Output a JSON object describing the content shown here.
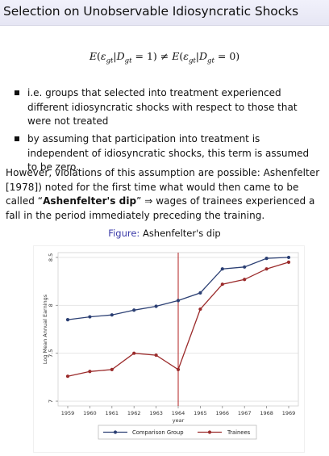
{
  "slide": {
    "title": "Selection on Unobservable Idiosyncratic Shocks",
    "bullets": [
      "i.e. groups that selected into treatment experienced different idiosyncratic shocks with respect to those that were not treated",
      "by assuming that participation into treatment is independent of idiosyncratic shocks, this term is assumed to be zero."
    ],
    "paragraph": {
      "pre": "However, violations of this assumption are possible: Ashenfelter [1978]) noted for the first time what would then came to be called “",
      "bold": "Ashenfelter's dip",
      "post": "” ⇒ wages of trainees experienced a fall in the period immediately preceding the training."
    },
    "caption_label": "Figure:",
    "caption_text": "Ashenfelter's dip"
  },
  "equation": {
    "lhs_E": "E",
    "eps": "ε",
    "gt": "gt",
    "bar": "|",
    "D": "D",
    "lhs_val": " = 1)",
    "open": "(",
    "neq": " ≠ ",
    "rhs_val": " = 0)"
  },
  "chart_data": {
    "type": "line",
    "title": "",
    "xlabel": "year",
    "ylabel": "Log Mean Annual Earnings",
    "x": [
      1959,
      1960,
      1961,
      1962,
      1963,
      1964,
      1965,
      1966,
      1967,
      1968,
      1969
    ],
    "x_ticks": [
      "1959",
      "1960",
      "1961",
      "1962",
      "1963",
      "1964",
      "1965",
      "1966",
      "1967",
      "1968",
      "1969"
    ],
    "y_ticks": [
      "7",
      "7.5",
      "8",
      "8.5"
    ],
    "ylim": [
      6.95,
      8.55
    ],
    "grid": "horizontal",
    "reference_line": {
      "x": 1964,
      "color": "#b22222"
    },
    "legend_position": "bottom",
    "series": [
      {
        "name": "Comparison Group",
        "color": "#2b3f73",
        "values": [
          7.85,
          7.88,
          7.9,
          7.95,
          7.99,
          8.05,
          8.13,
          8.38,
          8.4,
          8.49,
          8.5
        ]
      },
      {
        "name": "Trainees",
        "color": "#9b2b2b",
        "values": [
          7.26,
          7.31,
          7.33,
          7.5,
          7.48,
          7.33,
          7.96,
          8.22,
          8.27,
          8.38,
          8.45
        ]
      }
    ]
  }
}
